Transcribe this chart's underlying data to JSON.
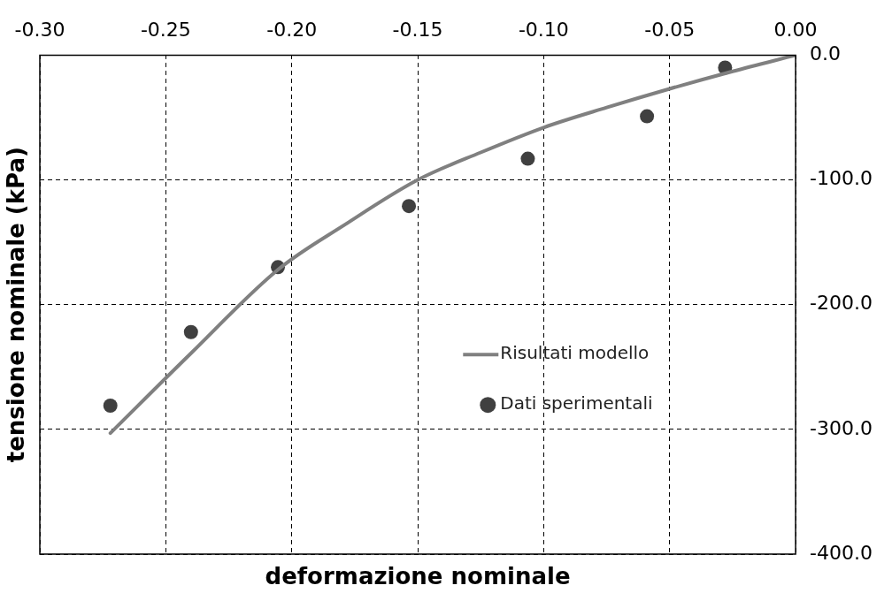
{
  "chart_data": {
    "type": "scatter",
    "xlabel": "deformazione nominale",
    "ylabel": "tensione nominale (kPa)",
    "xlim": [
      -0.3,
      0.0
    ],
    "xticks": [
      {
        "value": -0.3,
        "label": "-0.30"
      },
      {
        "value": -0.25,
        "label": "-0.25"
      },
      {
        "value": -0.2,
        "label": "-0.20"
      },
      {
        "value": -0.15,
        "label": "-0.15"
      },
      {
        "value": -0.1,
        "label": "-0.10"
      },
      {
        "value": -0.05,
        "label": "-0.05"
      },
      {
        "value": 0,
        "label": "0.00"
      }
    ],
    "ylim": [
      -400,
      0
    ],
    "yticks": [
      {
        "value": 0,
        "label": "0.0"
      },
      {
        "value": -100,
        "label": "-100.0"
      },
      {
        "value": -200,
        "label": "-200.0"
      },
      {
        "value": -300,
        "label": "-300.0"
      },
      {
        "value": -400,
        "label": "-400.0"
      }
    ],
    "grid": true,
    "legend": "right",
    "series": [
      {
        "name": "Risultati modello",
        "type": "line",
        "color": "#808080",
        "marker": "none",
        "line_style": "solid",
        "x": [
          -0.272,
          -0.24,
          -0.2055,
          -0.179,
          -0.15,
          -0.125,
          -0.1,
          -0.075,
          -0.05,
          -0.025,
          0
        ],
        "values": [
          -303,
          -239,
          -172,
          -136,
          -100,
          -78,
          -58,
          -42,
          -27,
          -13,
          0
        ]
      },
      {
        "name": "Dati sperimentali",
        "color": "#404040",
        "marker": "circle",
        "x": [
          -0.272,
          -0.24,
          -0.2055,
          -0.1535,
          -0.1063,
          -0.059,
          -0.028
        ],
        "values": [
          -281,
          -222,
          -170,
          -121,
          -83,
          -49,
          -10
        ]
      }
    ]
  }
}
